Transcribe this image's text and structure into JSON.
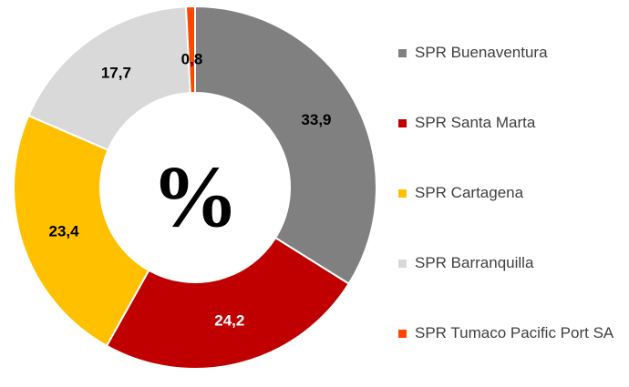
{
  "chart_data": {
    "type": "donut",
    "center_label": "%",
    "categories": [
      "SPR Buenaventura",
      "SPR Santa Marta",
      "SPR Cartagena",
      "SPR Barranquilla",
      "SPR Tumaco Pacific Port SA"
    ],
    "values": [
      33.9,
      24.2,
      23.4,
      17.7,
      0.8
    ],
    "value_labels": [
      "33,9",
      "24,2",
      "23,4",
      "17,7",
      "0,8"
    ],
    "colors": [
      "#808080",
      "#c00000",
      "#ffc000",
      "#d9d9d9",
      "#ff4500"
    ],
    "label_colors": [
      "#000000",
      "#ffffff",
      "#000000",
      "#000000",
      "#000000"
    ],
    "legend": "right"
  }
}
